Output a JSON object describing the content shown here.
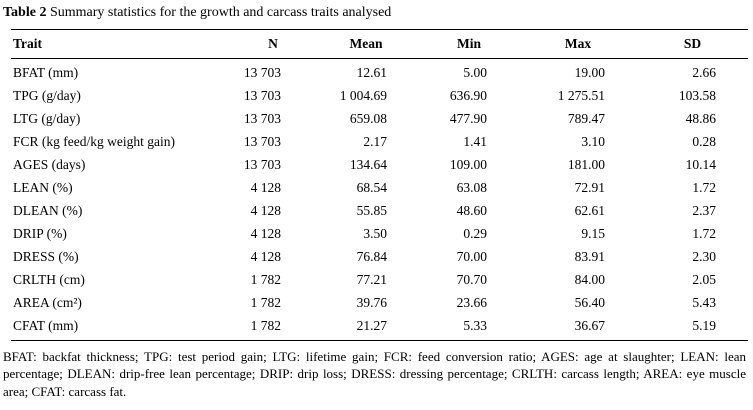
{
  "caption": {
    "label": "Table 2",
    "text": "Summary statistics for the growth and carcass traits analysed"
  },
  "chart_data": {
    "type": "table",
    "columns": [
      "Trait",
      "N",
      "Mean",
      "Min",
      "Max",
      "SD"
    ],
    "rows": [
      [
        "BFAT (mm)",
        "13 703",
        "12.61",
        "5.00",
        "19.00",
        "2.66"
      ],
      [
        "TPG (g/day)",
        "13 703",
        "1 004.69",
        "636.90",
        "1 275.51",
        "103.58"
      ],
      [
        "LTG (g/day)",
        "13 703",
        "659.08",
        "477.90",
        "789.47",
        "48.86"
      ],
      [
        "FCR (kg feed/kg weight gain)",
        "13 703",
        "2.17",
        "1.41",
        "3.10",
        "0.28"
      ],
      [
        "AGES (days)",
        "13 703",
        "134.64",
        "109.00",
        "181.00",
        "10.14"
      ],
      [
        "LEAN (%)",
        "4 128",
        "68.54",
        "63.08",
        "72.91",
        "1.72"
      ],
      [
        "DLEAN (%)",
        "4 128",
        "55.85",
        "48.60",
        "62.61",
        "2.37"
      ],
      [
        "DRIP (%)",
        "4 128",
        "3.50",
        "0.29",
        "9.15",
        "1.72"
      ],
      [
        "DRESS (%)",
        "4 128",
        "76.84",
        "70.00",
        "83.91",
        "2.30"
      ],
      [
        "CRLTH (cm)",
        "1 782",
        "77.21",
        "70.70",
        "84.00",
        "2.05"
      ],
      [
        "AREA (cm²)",
        "1 782",
        "39.76",
        "23.66",
        "56.40",
        "5.43"
      ],
      [
        "CFAT (mm)",
        "1 782",
        "21.27",
        "5.33",
        "36.67",
        "5.19"
      ]
    ]
  },
  "footnote": "BFAT: backfat thickness; TPG: test period gain; LTG: lifetime gain; FCR: feed conversion ratio; AGES: age at slaughter; LEAN: lean percentage; DLEAN: drip-free lean percentage; DRIP: drip loss; DRESS: dressing percentage; CRLTH: carcass length; AREA: eye muscle area; CFAT: carcass fat."
}
